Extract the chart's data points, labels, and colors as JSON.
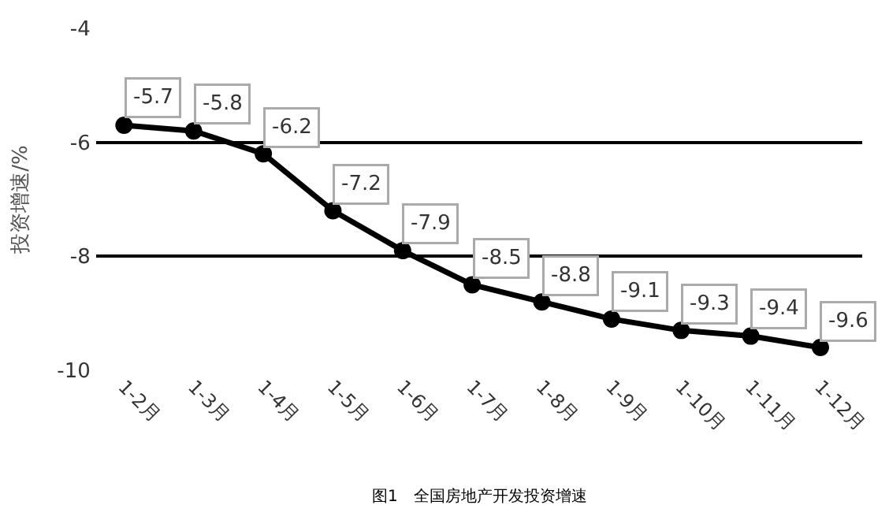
{
  "chart_data": {
    "type": "line",
    "categories": [
      "1-2月",
      "1-3月",
      "1-4月",
      "1-5月",
      "1-6月",
      "1-7月",
      "1-8月",
      "1-9月",
      "1-10月",
      "1-11月",
      "1-12月"
    ],
    "values": [
      -5.7,
      -5.8,
      -6.2,
      -7.2,
      -7.9,
      -8.5,
      -8.8,
      -9.1,
      -9.3,
      -9.4,
      -9.6
    ],
    "color": "#000000",
    "ylim": [
      -10,
      -4
    ],
    "yticks": [
      -4,
      -6,
      -8,
      -10
    ],
    "ylabel": "投资增速/%",
    "grid": "y",
    "marker": "circle",
    "line_style": "solid",
    "data_labels": true,
    "annotations": [
      "图1　全国房地产开发投资增速"
    ]
  }
}
